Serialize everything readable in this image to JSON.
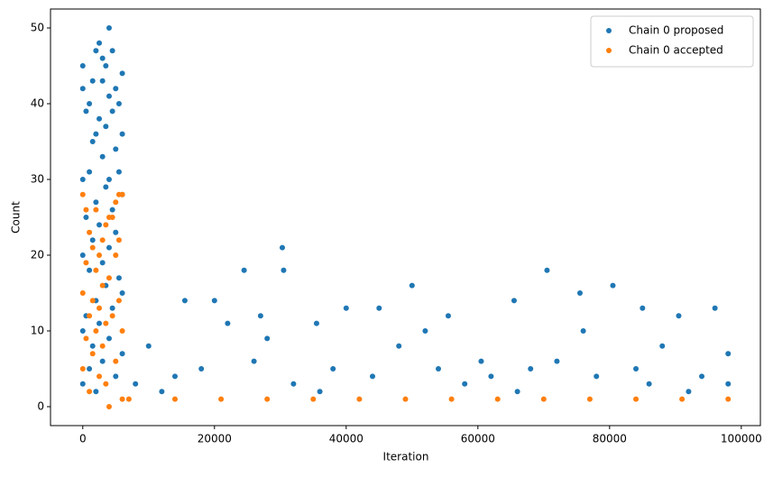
{
  "chart_data": {
    "type": "scatter",
    "xlabel": "Iteration",
    "ylabel": "Count",
    "xlim": [
      -4900,
      102900
    ],
    "ylim": [
      -2.5,
      52.5
    ],
    "xticks": [
      0,
      20000,
      40000,
      60000,
      80000,
      100000
    ],
    "yticks": [
      0,
      10,
      20,
      30,
      40,
      50
    ],
    "grid": false,
    "legend": "upper right",
    "series": [
      {
        "name": "Chain 0 proposed",
        "color": "#1f77b4",
        "x": [
          0,
          0,
          0,
          0,
          0,
          0,
          500,
          500,
          500,
          1000,
          1000,
          1000,
          1000,
          1500,
          1500,
          1500,
          1500,
          2000,
          2000,
          2000,
          2000,
          2000,
          2500,
          2500,
          2500,
          2500,
          3000,
          3000,
          3000,
          3000,
          3000,
          3500,
          3500,
          3500,
          3500,
          4000,
          4000,
          4000,
          4000,
          4000,
          4500,
          4500,
          4500,
          4500,
          5000,
          5000,
          5000,
          5000,
          5500,
          5500,
          5500,
          6000,
          6000,
          6000,
          6000,
          6000,
          10000,
          15500,
          20000,
          22000,
          24500,
          27000,
          30300,
          30500,
          35500,
          40000,
          45000,
          50000,
          55500,
          60500,
          65500,
          70500,
          75500,
          80500,
          85000,
          90500,
          96000,
          98000,
          8000,
          14000,
          18000,
          26000,
          32000,
          38000,
          44000,
          48000,
          54000,
          58000,
          62000,
          68000,
          72000,
          78000,
          84000,
          88000,
          94000,
          12000,
          36000,
          66000,
          86000,
          92000,
          98000,
          52000,
          76000,
          28000
        ],
        "values": [
          45,
          42,
          30,
          20,
          10,
          3,
          39,
          25,
          12,
          40,
          31,
          18,
          5,
          43,
          35,
          22,
          8,
          47,
          36,
          27,
          14,
          2,
          48,
          38,
          24,
          11,
          46,
          43,
          33,
          19,
          6,
          45,
          37,
          29,
          16,
          50,
          41,
          30,
          21,
          9,
          47,
          39,
          26,
          13,
          42,
          34,
          23,
          4,
          40,
          31,
          17,
          44,
          36,
          28,
          15,
          7,
          8,
          14,
          14,
          11,
          18,
          12,
          21,
          18,
          11,
          13,
          13,
          16,
          12,
          6,
          14,
          18,
          15,
          16,
          13,
          12,
          13,
          7,
          3,
          4,
          5,
          6,
          3,
          5,
          4,
          8,
          5,
          3,
          4,
          5,
          6,
          4,
          5,
          8,
          4,
          2,
          2,
          2,
          3,
          2,
          3,
          10,
          10,
          9
        ]
      },
      {
        "name": "Chain 0 accepted",
        "color": "#ff7f0e",
        "x": [
          0,
          0,
          0,
          500,
          500,
          500,
          1000,
          1000,
          1000,
          1500,
          1500,
          1500,
          2000,
          2000,
          2000,
          2500,
          2500,
          2500,
          3000,
          3000,
          3000,
          3500,
          3500,
          3500,
          4000,
          4000,
          4000,
          4500,
          4500,
          5000,
          5000,
          5000,
          5500,
          5500,
          5500,
          6000,
          6000,
          6000,
          7000,
          14000,
          21000,
          28000,
          35000,
          42000,
          49000,
          56000,
          63000,
          70000,
          77000,
          84000,
          91000,
          98000
        ],
        "values": [
          28,
          15,
          5,
          26,
          19,
          9,
          23,
          12,
          2,
          21,
          14,
          7,
          26,
          18,
          10,
          20,
          13,
          4,
          22,
          16,
          8,
          24,
          11,
          3,
          25,
          0,
          17,
          25,
          12,
          27,
          20,
          6,
          28,
          22,
          14,
          28,
          10,
          1,
          1,
          1,
          1,
          1,
          1,
          1,
          1,
          1,
          1,
          1,
          1,
          1,
          1,
          1
        ]
      }
    ]
  }
}
